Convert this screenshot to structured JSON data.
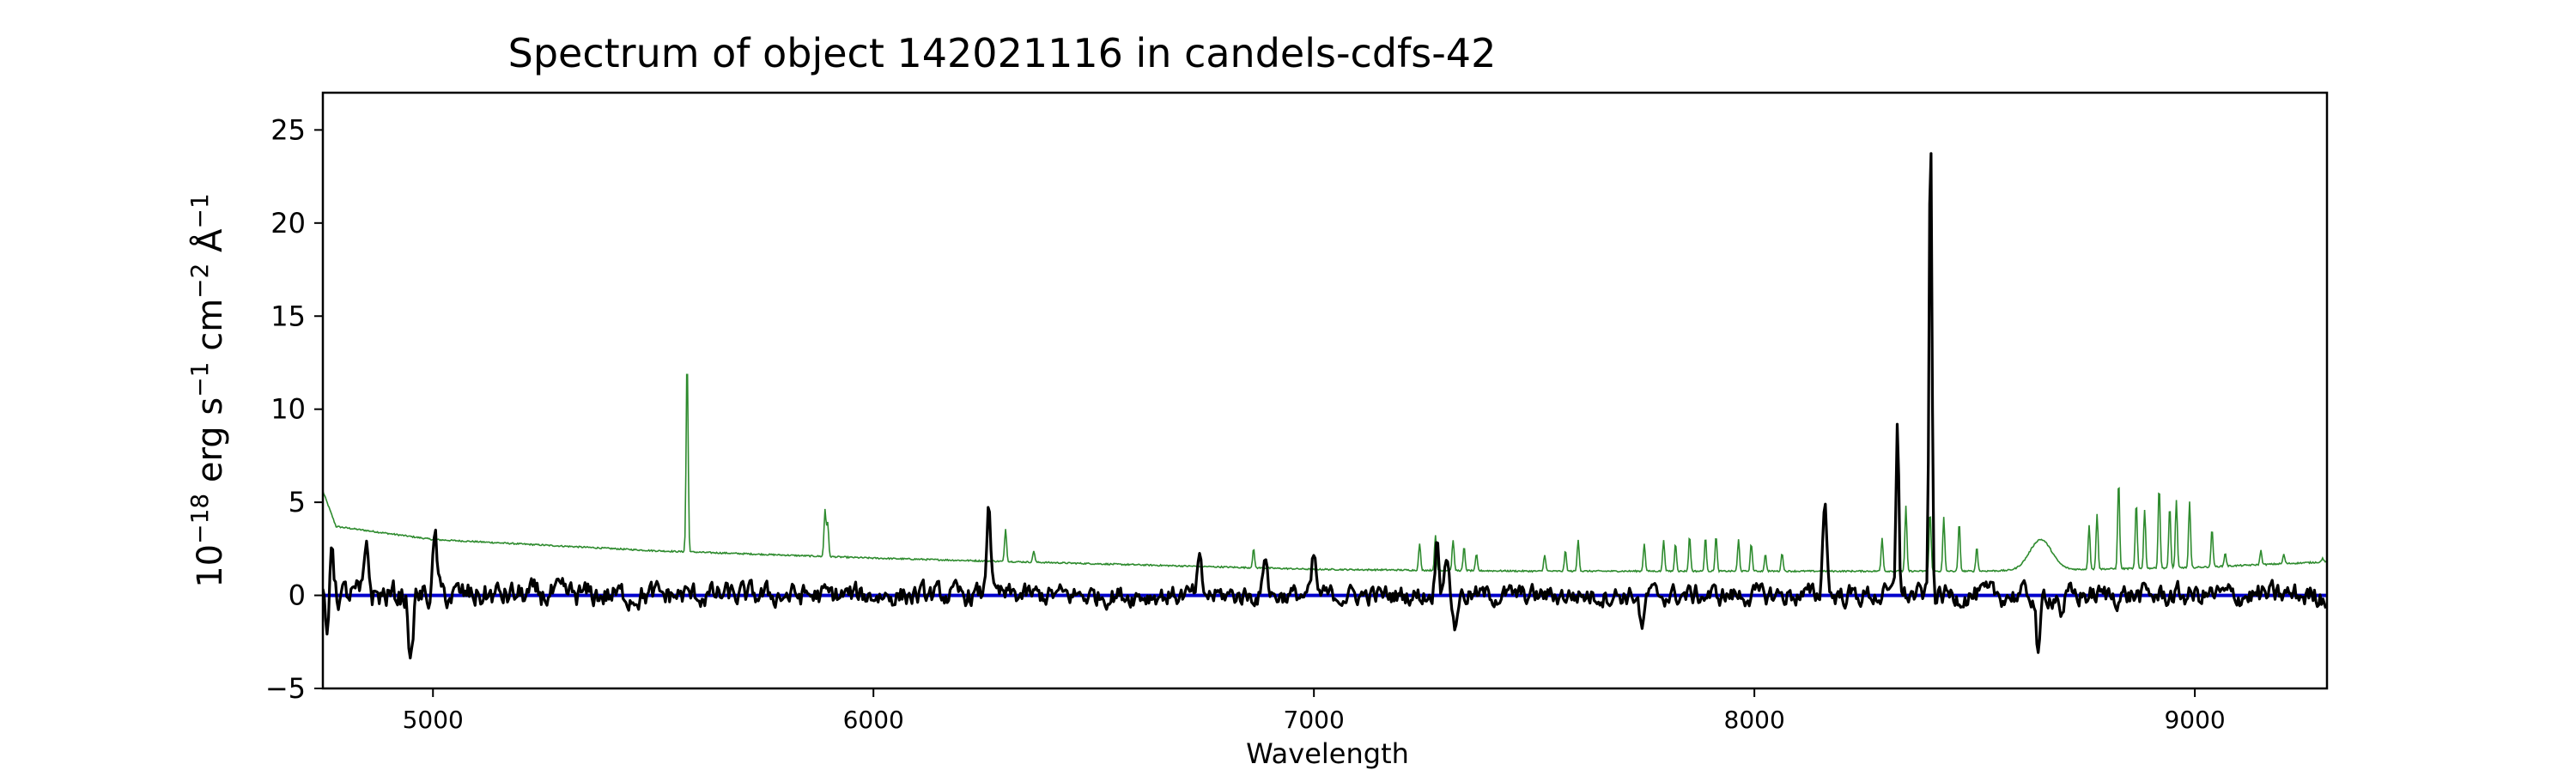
{
  "chart_data": {
    "type": "line",
    "title": "Spectrum of object 142021116 in candels-cdfs-42",
    "xlabel": "Wavelength",
    "ylabel_parts": [
      "10",
      "−18",
      " erg s",
      "−1",
      " cm",
      "−2",
      " Å",
      "−1"
    ],
    "xlim": [
      4750,
      9300
    ],
    "ylim": [
      -5,
      27
    ],
    "xticks": [
      5000,
      6000,
      7000,
      8000,
      9000
    ],
    "yticks": [
      -5,
      0,
      5,
      10,
      15,
      20,
      25
    ],
    "grid": false,
    "legend": "none",
    "series": [
      {
        "role": "sky spectrum",
        "color": "#2e8b2e",
        "baseline": [
          [
            4750,
            5.6
          ],
          [
            4780,
            3.7
          ],
          [
            5000,
            3.0
          ],
          [
            5500,
            2.4
          ],
          [
            6000,
            2.0
          ],
          [
            6500,
            1.7
          ],
          [
            7000,
            1.4
          ],
          [
            7500,
            1.3
          ],
          [
            8000,
            1.3
          ],
          [
            8500,
            1.3
          ],
          [
            9000,
            1.5
          ],
          [
            9300,
            1.8
          ]
        ],
        "lines": [
          [
            5577,
            12.9
          ],
          [
            5890,
            4.6
          ],
          [
            5896,
            3.9
          ],
          [
            6300,
            3.6
          ],
          [
            6364,
            2.4
          ],
          [
            6863,
            2.5
          ],
          [
            7240,
            2.8
          ],
          [
            7276,
            3.2
          ],
          [
            7316,
            3.0
          ],
          [
            7341,
            2.6
          ],
          [
            7369,
            2.2
          ],
          [
            7524,
            2.2
          ],
          [
            7571,
            2.4
          ],
          [
            7600,
            3.0
          ],
          [
            7750,
            2.8
          ],
          [
            7794,
            3.0
          ],
          [
            7821,
            2.8
          ],
          [
            7853,
            3.2
          ],
          [
            7889,
            3.1
          ],
          [
            7913,
            3.2
          ],
          [
            7964,
            3.0
          ],
          [
            7993,
            2.8
          ],
          [
            8025,
            2.2
          ],
          [
            8063,
            2.3
          ],
          [
            8290,
            3.1
          ],
          [
            8344,
            4.8
          ],
          [
            8399,
            4.5
          ],
          [
            8430,
            4.2
          ],
          [
            8465,
            3.9
          ],
          [
            8505,
            2.6
          ],
          [
            8760,
            3.8
          ],
          [
            8778,
            4.4
          ],
          [
            8827,
            6.2
          ],
          [
            8867,
            5.0
          ],
          [
            8886,
            4.6
          ],
          [
            8919,
            5.9
          ],
          [
            8943,
            4.8
          ],
          [
            8958,
            5.1
          ],
          [
            8988,
            5.0
          ],
          [
            9039,
            3.6
          ],
          [
            9069,
            2.3
          ],
          [
            9150,
            2.4
          ],
          [
            9202,
            2.2
          ],
          [
            9290,
            2.0
          ]
        ],
        "bumps": [
          [
            8650,
            3.0,
            25
          ]
        ]
      },
      {
        "role": "error",
        "color": "#0000cc",
        "points": [
          [
            4750,
            0.0
          ],
          [
            9300,
            0.0
          ]
        ]
      },
      {
        "role": "object spectrum",
        "color": "#000000",
        "noise_amplitude": [
          [
            4750,
            1.1
          ],
          [
            6000,
            0.85
          ],
          [
            7000,
            0.75
          ],
          [
            8000,
            0.8
          ],
          [
            9300,
            0.9
          ]
        ],
        "features": [
          [
            4760,
            -2.7
          ],
          [
            4770,
            3.6
          ],
          [
            4850,
            2.9
          ],
          [
            4950,
            -3.6
          ],
          [
            5005,
            3.3
          ],
          [
            6262,
            5.4
          ],
          [
            6740,
            1.9
          ],
          [
            6890,
            2.6
          ],
          [
            7000,
            2.2
          ],
          [
            7280,
            3.2
          ],
          [
            7300,
            2.7
          ],
          [
            7320,
            -1.5
          ],
          [
            7745,
            -1.9
          ],
          [
            8160,
            5.5
          ],
          [
            8325,
            9.8
          ],
          [
            8400,
            25.4
          ],
          [
            8645,
            -3.3
          ],
          [
            8700,
            -1.0
          ]
        ]
      }
    ]
  }
}
